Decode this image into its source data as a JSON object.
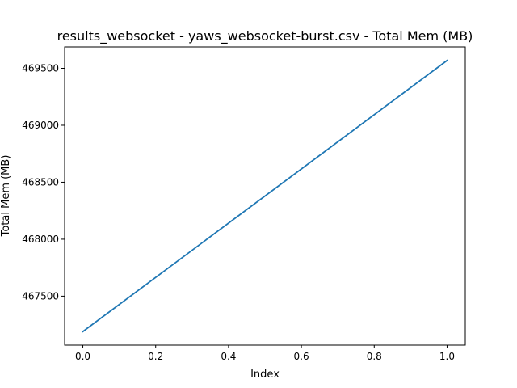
{
  "chart_data": {
    "type": "line",
    "title": "results_websocket - yaws_websocket-burst.csv - Total Mem (MB)",
    "xlabel": "Index",
    "ylabel": "Total Mem (MB)",
    "xlim": [
      -0.05,
      1.05
    ],
    "ylim": [
      467070,
      469688
    ],
    "xticks": [
      {
        "value": 0.0,
        "label": "0.0"
      },
      {
        "value": 0.2,
        "label": "0.2"
      },
      {
        "value": 0.4,
        "label": "0.4"
      },
      {
        "value": 0.6,
        "label": "0.6"
      },
      {
        "value": 0.8,
        "label": "0.8"
      },
      {
        "value": 1.0,
        "label": "1.0"
      }
    ],
    "yticks": [
      {
        "value": 467500,
        "label": "467500"
      },
      {
        "value": 468000,
        "label": "468000"
      },
      {
        "value": 468500,
        "label": "468500"
      },
      {
        "value": 469000,
        "label": "469000"
      },
      {
        "value": 469500,
        "label": "469500"
      }
    ],
    "grid": false,
    "series": [
      {
        "color": "#1f77b4",
        "x": [
          0,
          1
        ],
        "y": [
          467189,
          469569
        ]
      }
    ]
  }
}
